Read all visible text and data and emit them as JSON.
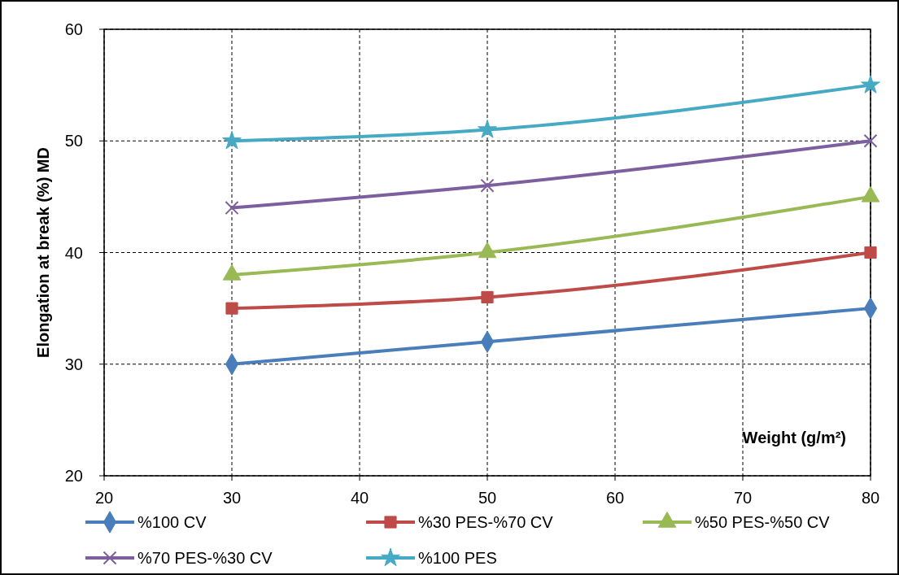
{
  "chart_data": {
    "type": "line",
    "xlabel": "Weight (g/m²)",
    "ylabel": "Elongation at break (%) MD",
    "x": [
      30,
      50,
      80
    ],
    "series": [
      {
        "name": "%100 CV",
        "color": "#4a7ebb",
        "marker": "diamond",
        "values": [
          30,
          32,
          35
        ]
      },
      {
        "name": "%30 PES-%70 CV",
        "color": "#be4b48",
        "marker": "square",
        "values": [
          35,
          36,
          40
        ]
      },
      {
        "name": "%50 PES-%50 CV",
        "color": "#98b954",
        "marker": "triangle",
        "values": [
          38,
          40,
          45
        ]
      },
      {
        "name": "%70 PES-%30 CV",
        "color": "#7d5fa0",
        "marker": "cross",
        "values": [
          44,
          46,
          50
        ]
      },
      {
        "name": "%100 PES",
        "color": "#46aac5",
        "marker": "star",
        "values": [
          50,
          51,
          55
        ]
      }
    ],
    "xlim": [
      20,
      80
    ],
    "xticks": [
      20,
      30,
      40,
      50,
      60,
      70,
      80
    ],
    "ylim": [
      20,
      60
    ],
    "yticks": [
      20,
      30,
      40,
      50,
      60
    ],
    "grid": true,
    "legend": "bottom",
    "line_style": "solid"
  }
}
